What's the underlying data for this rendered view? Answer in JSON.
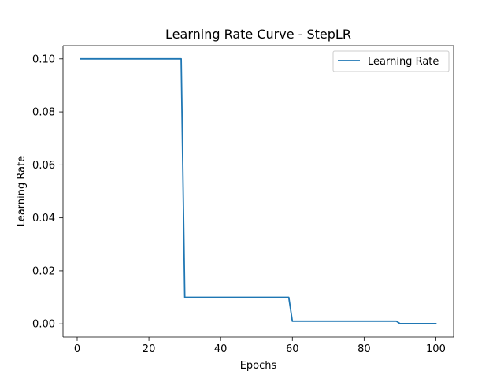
{
  "chart_data": {
    "type": "line",
    "title": "Learning Rate Curve - StepLR",
    "xlabel": "Epochs",
    "ylabel": "Learning Rate",
    "xlim": [
      -3.95,
      104.95
    ],
    "ylim": [
      -0.004995,
      0.104995
    ],
    "xticks": [
      0,
      20,
      40,
      60,
      80,
      100
    ],
    "xtick_labels": [
      "0",
      "20",
      "40",
      "60",
      "80",
      "100"
    ],
    "yticks": [
      0.0,
      0.02,
      0.04,
      0.06,
      0.08,
      0.1
    ],
    "ytick_labels": [
      "0.00",
      "0.02",
      "0.04",
      "0.06",
      "0.08",
      "0.10"
    ],
    "grid": false,
    "legend": "upper right",
    "series": [
      {
        "name": "Learning Rate",
        "color": "#1f77b4",
        "x": [
          1,
          29,
          30,
          59,
          60,
          89,
          90,
          100
        ],
        "y": [
          0.1,
          0.1,
          0.01,
          0.01,
          0.001,
          0.001,
          0.0001,
          0.0001
        ]
      }
    ]
  }
}
